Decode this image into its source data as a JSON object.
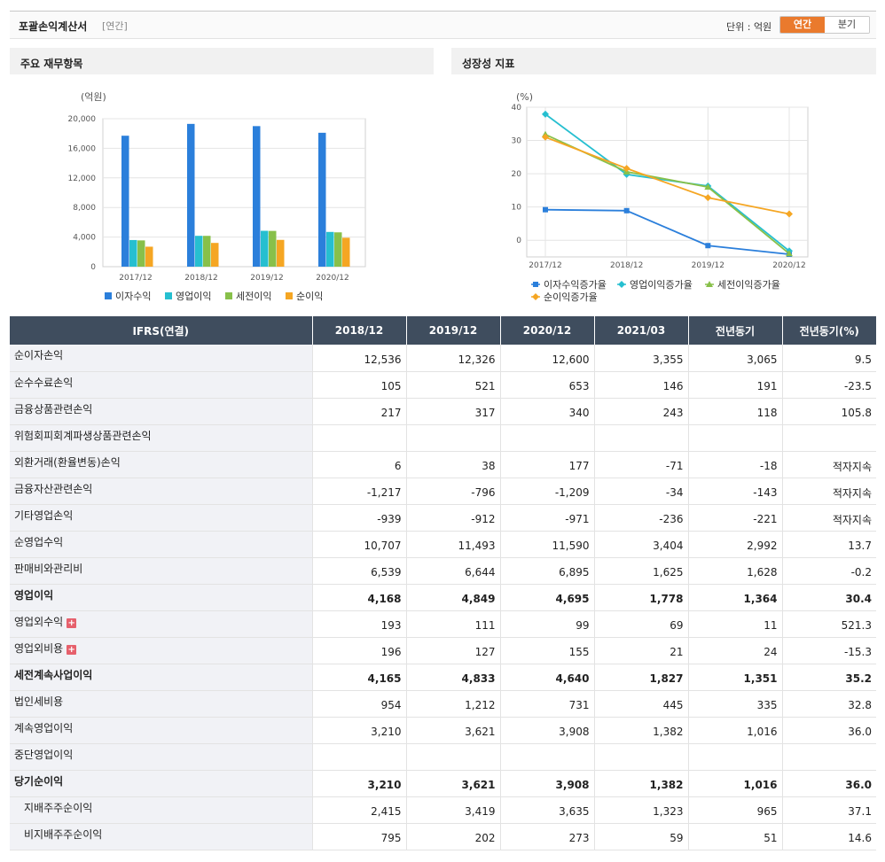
{
  "header": {
    "title": "포괄손익계산서",
    "subtitle": "[연간]",
    "unit_label": "단위 : 억원",
    "tab_annual": "연간",
    "tab_quarter": "분기"
  },
  "colors": {
    "accent": "#ea7a2d",
    "table_header": "#3f4d5e",
    "negative": "#e0000a"
  },
  "panels": {
    "left_title": "주요 재무항목",
    "right_title": "성장성 지표"
  },
  "chart_data": [
    {
      "type": "bar",
      "ylabel": "(억원)",
      "ylim": [
        0,
        20000
      ],
      "yticks": [
        "0",
        "4,000",
        "8,000",
        "12,000",
        "16,000",
        "20,000"
      ],
      "ytick_values": [
        0,
        4000,
        8000,
        12000,
        16000,
        20000
      ],
      "categories": [
        "2017/12",
        "2018/12",
        "2019/12",
        "2020/12"
      ],
      "series": [
        {
          "name": "이자수익",
          "color": "#2b7fdb",
          "values": [
            17700,
            19300,
            19000,
            18100
          ]
        },
        {
          "name": "영업이익",
          "color": "#26bfd0",
          "values": [
            3600,
            4168,
            4849,
            4695
          ]
        },
        {
          "name": "세전이익",
          "color": "#88c04a",
          "values": [
            3550,
            4165,
            4833,
            4640
          ]
        },
        {
          "name": "순이익",
          "color": "#f5a623",
          "values": [
            2700,
            3210,
            3621,
            3908
          ]
        }
      ],
      "legend": "bottom",
      "grid": true
    },
    {
      "type": "line",
      "ylabel": "(%)",
      "ylim": [
        -5,
        40
      ],
      "yticks": [
        "0",
        "10",
        "20",
        "30",
        "40"
      ],
      "ytick_values": [
        0,
        10,
        20,
        30,
        40
      ],
      "categories": [
        "2017/12",
        "2018/12",
        "2019/12",
        "2020/12"
      ],
      "series": [
        {
          "name": "이자수익증가율",
          "color": "#2b7fdb",
          "marker": "square",
          "values": [
            9.2,
            8.9,
            -1.6,
            -4.2
          ]
        },
        {
          "name": "영업이익증가율",
          "color": "#26bfd0",
          "marker": "diamond",
          "values": [
            37.9,
            19.8,
            16.3,
            -3.2
          ]
        },
        {
          "name": "세전이익증가율",
          "color": "#88c04a",
          "marker": "triangle",
          "values": [
            31.8,
            20.6,
            16.0,
            -4.0
          ]
        },
        {
          "name": "순이익증가율",
          "color": "#f5a623",
          "marker": "diamond",
          "values": [
            31.0,
            21.6,
            12.8,
            7.9
          ]
        }
      ],
      "legend": "bottom",
      "grid": true
    }
  ],
  "table": {
    "columns": [
      "IFRS(연결)",
      "2018/12",
      "2019/12",
      "2020/12",
      "2021/03",
      "전년동기",
      "전년동기(%)"
    ],
    "rows": [
      {
        "label": "순이자손익",
        "values": [
          "12,536",
          "12,326",
          "12,600",
          "3,355",
          "3,065",
          "9.5"
        ],
        "neg": [
          false,
          false,
          false,
          false,
          false,
          false
        ]
      },
      {
        "label": "순수수료손익",
        "values": [
          "105",
          "521",
          "653",
          "146",
          "191",
          "-23.5"
        ],
        "neg": [
          false,
          false,
          false,
          false,
          false,
          true
        ]
      },
      {
        "label": "금융상품관련손익",
        "values": [
          "217",
          "317",
          "340",
          "243",
          "118",
          "105.8"
        ],
        "neg": [
          false,
          false,
          false,
          false,
          false,
          false
        ]
      },
      {
        "label": "위험회피회계파생상품관련손익",
        "values": [
          "",
          "",
          "",
          "",
          "",
          ""
        ],
        "neg": [
          false,
          false,
          false,
          false,
          false,
          false
        ]
      },
      {
        "label": "외환거래(환율변동)손익",
        "values": [
          "6",
          "38",
          "177",
          "-71",
          "-18",
          "적자지속"
        ],
        "neg": [
          false,
          false,
          false,
          true,
          true,
          false
        ]
      },
      {
        "label": "금융자산관련손익",
        "values": [
          "-1,217",
          "-796",
          "-1,209",
          "-34",
          "-143",
          "적자지속"
        ],
        "neg": [
          true,
          true,
          true,
          true,
          true,
          false
        ]
      },
      {
        "label": "기타영업손익",
        "values": [
          "-939",
          "-912",
          "-971",
          "-236",
          "-221",
          "적자지속"
        ],
        "neg": [
          true,
          true,
          true,
          true,
          true,
          false
        ]
      },
      {
        "label": "순영업수익",
        "values": [
          "10,707",
          "11,493",
          "11,590",
          "3,404",
          "2,992",
          "13.7"
        ],
        "neg": [
          false,
          false,
          false,
          false,
          false,
          false
        ]
      },
      {
        "label": "판매비와관리비",
        "values": [
          "6,539",
          "6,644",
          "6,895",
          "1,625",
          "1,628",
          "-0.2"
        ],
        "neg": [
          false,
          false,
          false,
          false,
          false,
          true
        ]
      },
      {
        "label": "영업이익",
        "bold": true,
        "values": [
          "4,168",
          "4,849",
          "4,695",
          "1,778",
          "1,364",
          "30.4"
        ],
        "neg": [
          false,
          false,
          false,
          false,
          false,
          false
        ]
      },
      {
        "label": "영업외수익",
        "expand": true,
        "values": [
          "193",
          "111",
          "99",
          "69",
          "11",
          "521.3"
        ],
        "neg": [
          false,
          false,
          false,
          false,
          false,
          false
        ]
      },
      {
        "label": "영업외비용",
        "expand": true,
        "values": [
          "196",
          "127",
          "155",
          "21",
          "24",
          "-15.3"
        ],
        "neg": [
          false,
          false,
          false,
          false,
          false,
          true
        ]
      },
      {
        "label": "세전계속사업이익",
        "bold": true,
        "values": [
          "4,165",
          "4,833",
          "4,640",
          "1,827",
          "1,351",
          "35.2"
        ],
        "neg": [
          false,
          false,
          false,
          false,
          false,
          false
        ]
      },
      {
        "label": "법인세비용",
        "values": [
          "954",
          "1,212",
          "731",
          "445",
          "335",
          "32.8"
        ],
        "neg": [
          false,
          false,
          false,
          false,
          false,
          false
        ]
      },
      {
        "label": "계속영업이익",
        "values": [
          "3,210",
          "3,621",
          "3,908",
          "1,382",
          "1,016",
          "36.0"
        ],
        "neg": [
          false,
          false,
          false,
          false,
          false,
          false
        ]
      },
      {
        "label": "중단영업이익",
        "values": [
          "",
          "",
          "",
          "",
          "",
          ""
        ],
        "neg": [
          false,
          false,
          false,
          false,
          false,
          false
        ]
      },
      {
        "label": "당기순이익",
        "bold": true,
        "values": [
          "3,210",
          "3,621",
          "3,908",
          "1,382",
          "1,016",
          "36.0"
        ],
        "neg": [
          false,
          false,
          false,
          false,
          false,
          false
        ]
      },
      {
        "label": "지배주주순이익",
        "indent": true,
        "values": [
          "2,415",
          "3,419",
          "3,635",
          "1,323",
          "965",
          "37.1"
        ],
        "neg": [
          false,
          false,
          false,
          false,
          false,
          false
        ]
      },
      {
        "label": "비지배주주순이익",
        "indent": true,
        "values": [
          "795",
          "202",
          "273",
          "59",
          "51",
          "14.6"
        ],
        "neg": [
          false,
          false,
          false,
          false,
          false,
          false
        ]
      }
    ]
  }
}
